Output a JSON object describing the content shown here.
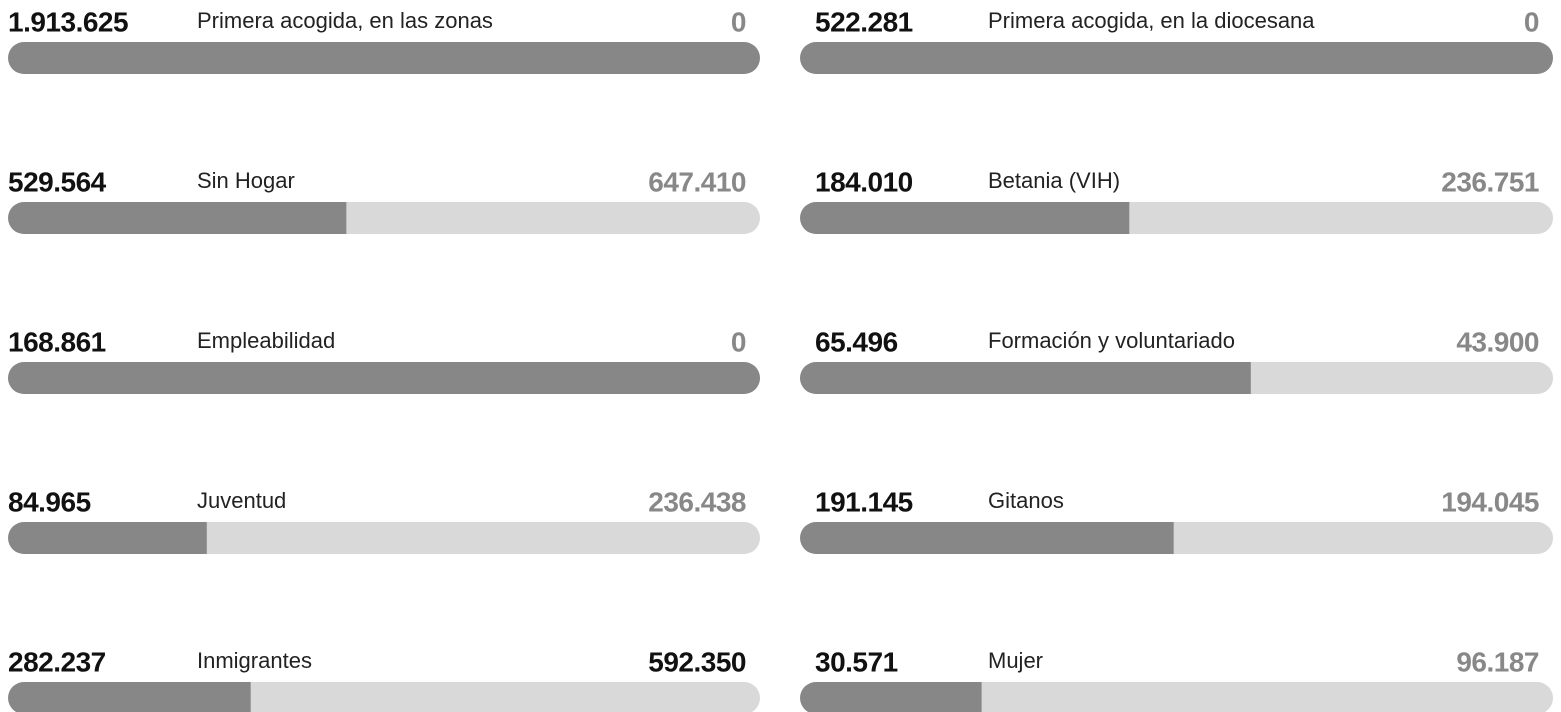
{
  "chart_data": {
    "type": "progress",
    "categories": [
      "Primera acogida, en las zonas",
      "Sin Hogar",
      "Empleabilidad",
      "Juventud",
      "Inmigrantes",
      "Primera acogida, en la diocesana",
      "Betania (VIH)",
      "Formación y voluntariado",
      "Gitanos",
      "Mujer"
    ],
    "series": [
      {
        "color": "#878787",
        "label_color": "#111111",
        "values": [
          1913625,
          529564,
          168861,
          84965,
          282237,
          522281,
          184010,
          65496,
          191145,
          30571
        ],
        "value_labels": [
          "1.913.625",
          "529.564",
          "168.861",
          "84.965",
          "282.237",
          "522.281",
          "184.010",
          "65.496",
          "191.145",
          "30.571"
        ]
      },
      {
        "color": "#d9d9d9",
        "values": [
          0,
          647410,
          0,
          236438,
          592350,
          0,
          236751,
          43900,
          194045,
          96187
        ],
        "value_labels": [
          "0",
          "647.410",
          "0",
          "236.438",
          "592.350",
          "0",
          "236.751",
          "43.900",
          "194.045",
          "96.187"
        ],
        "label_colors": [
          "#888888",
          "#888888",
          "#888888",
          "#888888",
          "#111111",
          "#888888",
          "#888888",
          "#888888",
          "#888888",
          "#888888"
        ]
      }
    ]
  }
}
